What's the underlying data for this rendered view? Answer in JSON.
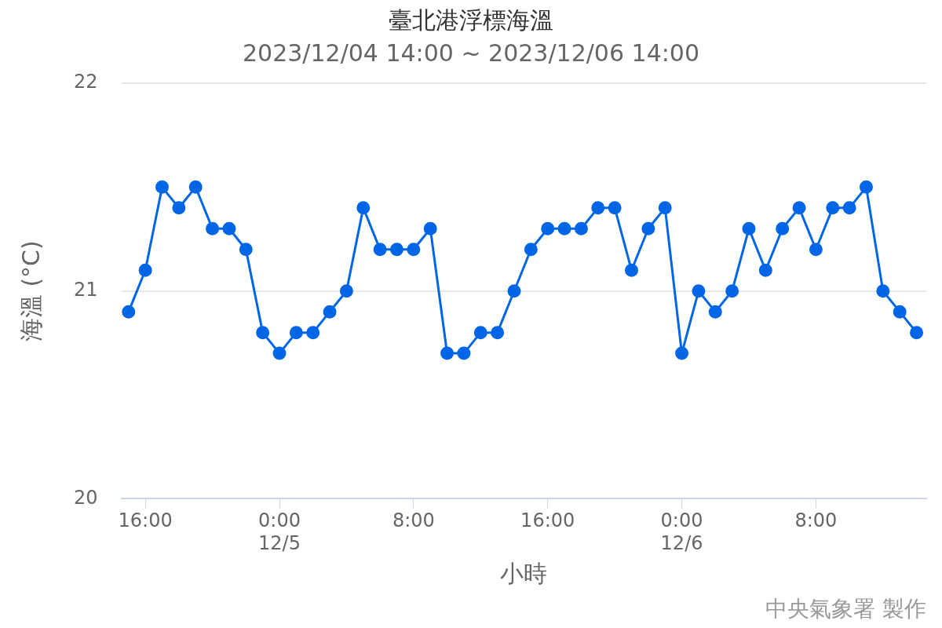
{
  "chart_data": {
    "type": "line",
    "title": "臺北港浮標海溫",
    "subtitle": "2023/12/04 14:00 ~ 2023/12/06 14:00",
    "xlabel": "小時",
    "ylabel": "海溫 (°C)",
    "x": [
      "2023-12-04T15:00",
      "2023-12-04T16:00",
      "2023-12-04T17:00",
      "2023-12-04T18:00",
      "2023-12-04T19:00",
      "2023-12-04T20:00",
      "2023-12-04T21:00",
      "2023-12-04T22:00",
      "2023-12-04T23:00",
      "2023-12-05T00:00",
      "2023-12-05T01:00",
      "2023-12-05T02:00",
      "2023-12-05T03:00",
      "2023-12-05T04:00",
      "2023-12-05T05:00",
      "2023-12-05T06:00",
      "2023-12-05T07:00",
      "2023-12-05T08:00",
      "2023-12-05T09:00",
      "2023-12-05T10:00",
      "2023-12-05T11:00",
      "2023-12-05T12:00",
      "2023-12-05T13:00",
      "2023-12-05T14:00",
      "2023-12-05T15:00",
      "2023-12-05T16:00",
      "2023-12-05T17:00",
      "2023-12-05T18:00",
      "2023-12-05T19:00",
      "2023-12-05T20:00",
      "2023-12-05T21:00",
      "2023-12-05T22:00",
      "2023-12-05T23:00",
      "2023-12-06T00:00",
      "2023-12-06T01:00",
      "2023-12-06T02:00",
      "2023-12-06T03:00",
      "2023-12-06T04:00",
      "2023-12-06T05:00",
      "2023-12-06T06:00",
      "2023-12-06T07:00",
      "2023-12-06T08:00",
      "2023-12-06T09:00",
      "2023-12-06T10:00",
      "2023-12-06T11:00",
      "2023-12-06T12:00",
      "2023-12-06T13:00",
      "2023-12-06T14:00"
    ],
    "series": [
      {
        "color": "#0066e6",
        "values": [
          20.9,
          21.1,
          21.5,
          21.4,
          21.5,
          21.3,
          21.3,
          21.2,
          20.8,
          20.7,
          20.8,
          20.8,
          20.9,
          21.0,
          21.4,
          21.2,
          21.2,
          21.2,
          21.3,
          20.7,
          20.7,
          20.8,
          20.8,
          21.0,
          21.2,
          21.3,
          21.3,
          21.3,
          21.4,
          21.4,
          21.1,
          21.3,
          21.4,
          20.7,
          21.0,
          20.9,
          21.0,
          21.3,
          21.1,
          21.3,
          21.4,
          21.2,
          21.4,
          21.4,
          21.5,
          21.0,
          20.9,
          20.8
        ]
      }
    ],
    "xlim": [
      "2023-12-04T14:34",
      "2023-12-06T14:35"
    ],
    "xticks": [
      {
        "value": "2023-12-04T16:00",
        "label": "16:00"
      },
      {
        "value": "2023-12-05T00:00",
        "label": "0:00\n12/5"
      },
      {
        "value": "2023-12-05T08:00",
        "label": "8:00"
      },
      {
        "value": "2023-12-05T16:00",
        "label": "16:00"
      },
      {
        "value": "2023-12-06T00:00",
        "label": "0:00\n12/6"
      },
      {
        "value": "2023-12-06T08:00",
        "label": "8:00"
      }
    ],
    "ylim": [
      20,
      22
    ],
    "yticks": [
      20,
      21,
      22
    ],
    "grid": "y",
    "legend": false,
    "marker": "circle",
    "line_style": "solid",
    "annotations": [
      "中央氣象署 製作"
    ]
  }
}
